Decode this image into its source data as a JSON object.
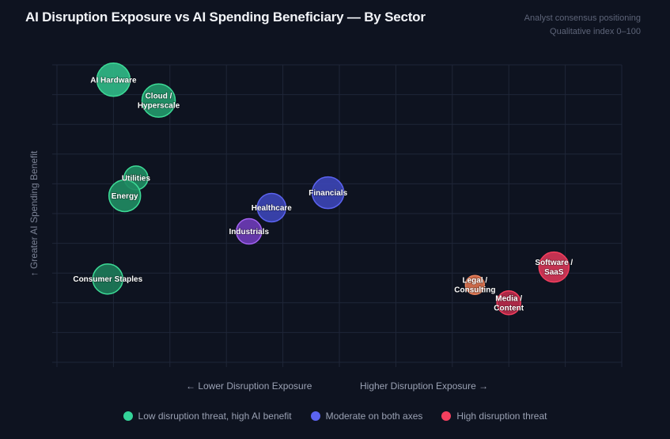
{
  "header": {
    "title": "AI Disruption Exposure vs AI Spending Beneficiary — By Sector",
    "subtitle_line1": "Analyst consensus positioning",
    "subtitle_line2": "Qualitative index 0–100"
  },
  "chart_data": {
    "type": "scatter",
    "title": "AI Disruption Exposure vs AI Spending Beneficiary — By Sector",
    "xlabel_left": "← Lower Disruption Exposure",
    "xlabel_right": "Higher Disruption Exposure →",
    "ylabel": "↑ Greater AI Spending Benefit",
    "xlim": [
      0,
      100
    ],
    "ylim": [
      0,
      100
    ],
    "grid": true,
    "tick_step": 10,
    "legend_position": "bottom-center",
    "categories": {
      "low": {
        "name": "Low disruption threat, high AI benefit",
        "color": "#34d399"
      },
      "moderate": {
        "name": "Moderate on both axes",
        "color": "#5b63f0"
      },
      "high": {
        "name": "High disruption threat",
        "color": "#f43f5e"
      }
    },
    "points": [
      {
        "label": [
          "AI Hardware"
        ],
        "x": 10,
        "y": 95,
        "size": 21,
        "fill": "#2fb785",
        "stroke": "#3ddc97",
        "group": "low"
      },
      {
        "label": [
          "Cloud /",
          "Hyperscale"
        ],
        "x": 18,
        "y": 88,
        "size": 21,
        "fill": "#22976a",
        "stroke": "#3ddc97",
        "group": "low"
      },
      {
        "label": [
          "Utilities"
        ],
        "x": 14,
        "y": 62,
        "size": 15,
        "fill": "#1f8a62",
        "stroke": "#3ddc97",
        "group": "low"
      },
      {
        "label": [
          "Energy"
        ],
        "x": 12,
        "y": 56,
        "size": 20,
        "fill": "#1f8a62",
        "stroke": "#3ddc97",
        "group": "low"
      },
      {
        "label": [
          "Consumer Staples"
        ],
        "x": 9,
        "y": 28,
        "size": 19,
        "fill": "#1c7a58",
        "stroke": "#3ddc97",
        "group": "low"
      },
      {
        "label": [
          "Healthcare"
        ],
        "x": 38,
        "y": 52,
        "size": 18,
        "fill": "#3b44b3",
        "stroke": "#5b63f0",
        "group": "moderate"
      },
      {
        "label": [
          "Financials"
        ],
        "x": 48,
        "y": 57,
        "size": 20,
        "fill": "#3b44b3",
        "stroke": "#5b63f0",
        "group": "moderate"
      },
      {
        "label": [
          "Industrials"
        ],
        "x": 34,
        "y": 44,
        "size": 16,
        "fill": "#6b3bb5",
        "stroke": "#a463f2",
        "group": "moderate"
      },
      {
        "label": [
          "Software /",
          "SaaS"
        ],
        "x": 88,
        "y": 32,
        "size": 19,
        "fill": "#d23556",
        "stroke": "#f43f5e",
        "group": "high"
      },
      {
        "label": [
          "Legal /",
          "Consulting"
        ],
        "x": 74,
        "y": 26,
        "size": 12,
        "fill": "#d9704c",
        "stroke": "#e8835e",
        "group": "high"
      },
      {
        "label": [
          "Media /",
          "Content"
        ],
        "x": 80,
        "y": 20,
        "size": 15,
        "fill": "#b82a4a",
        "stroke": "#f43f5e",
        "group": "high"
      }
    ]
  },
  "legend": [
    {
      "label": "Low disruption threat, high AI benefit",
      "color": "#34d399"
    },
    {
      "label": "Moderate on both axes",
      "color": "#5b63f0"
    },
    {
      "label": "High disruption threat",
      "color": "#f43f5e"
    }
  ]
}
